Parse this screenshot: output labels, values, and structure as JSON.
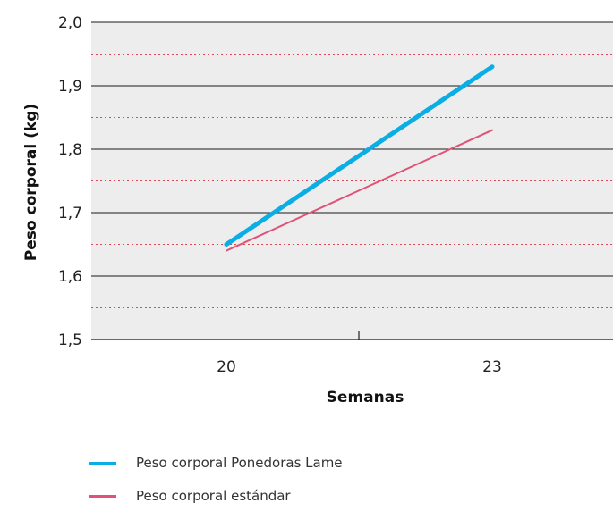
{
  "chart_data": {
    "type": "line",
    "xlabel": "Semanas",
    "ylabel": "Peso corporal (kg)",
    "x": [
      20,
      23
    ],
    "x_ticks": [
      "20",
      "23"
    ],
    "y_ticks": [
      "1,5",
      "1,6",
      "1,7",
      "1,8",
      "1,9",
      "2,0"
    ],
    "ylim": [
      1.5,
      2.0
    ],
    "grid": "solid major lines at 0.1, dotted red minor lines at 0.05",
    "series": [
      {
        "name": "Peso corporal Ponedoras Lame",
        "color": "#0aaee4",
        "values": [
          1.65,
          1.93
        ]
      },
      {
        "name": "Peso corporal estándar",
        "color": "#e05277",
        "values": [
          1.64,
          1.83
        ]
      }
    ],
    "legend_placement": "bottom-left"
  }
}
